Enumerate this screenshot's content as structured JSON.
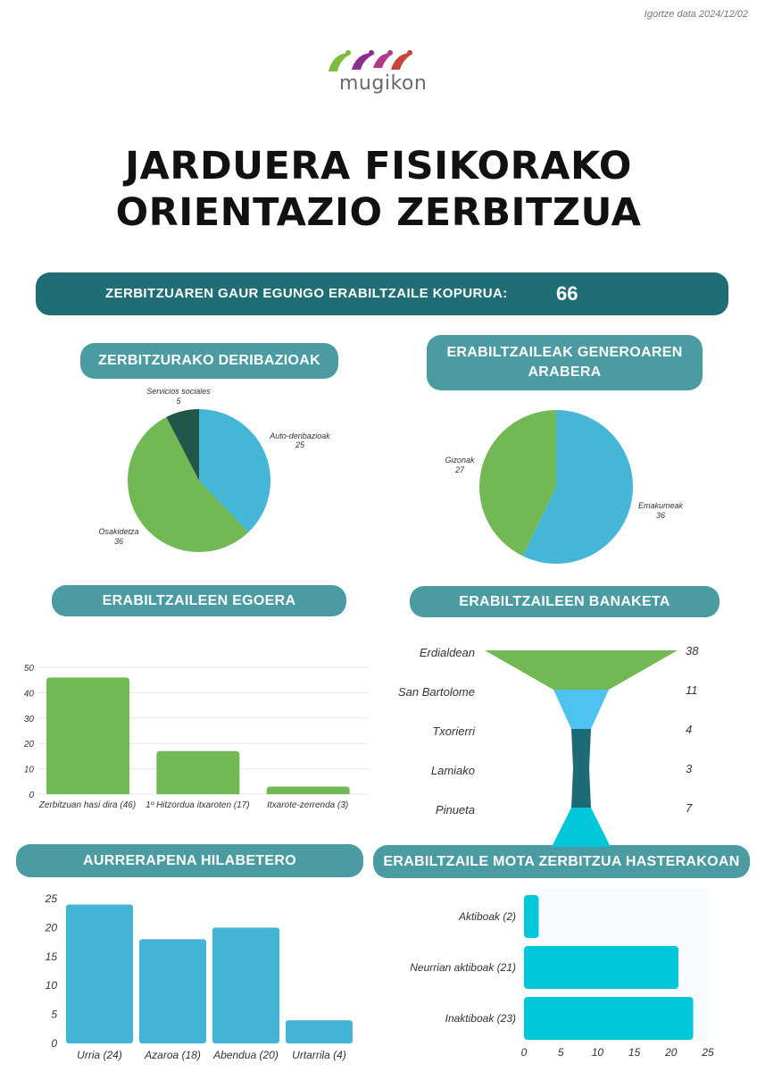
{
  "date": "Igortze data 2024/12/02",
  "logo": {
    "text": "mugikon"
  },
  "title": {
    "line1": "JARDUERA FISIKORAKO",
    "line2": "ORIENTAZIO ZERBITZUA"
  },
  "banner": {
    "label": "ZERBITZUAREN GAUR EGUNGO ERABILTZAILE KOPURUA:",
    "value": "66"
  },
  "sections": {
    "referrals": "ZERBITZURAKO DERIBAZIOAK",
    "gender": "ERABILTZAILEAK GENEROAREN ARABERA",
    "status": "ERABILTZAILEEN EGOERA",
    "distribution": "ERABILTZAILEEN BANAKETA",
    "monthly": "AURRERAPENA HILABETERO",
    "type": "ERABILTZAILE MOTA ZERBITZUA HASTERAKOAN"
  },
  "colors": {
    "blue": "#45b6d8",
    "green": "#72b955",
    "dark_green": "#22564a",
    "light_blue": "#4fc3f0",
    "teal": "#1d6b76",
    "cyan": "#00c6d9",
    "bar_blue": "#43b4d6",
    "dark_teal": "#1f6e75",
    "pill": "#4a9ba2"
  },
  "chart_data": [
    {
      "type": "pie",
      "labels": [
        "Auto-deribazioak",
        "Osakidetza",
        "Servicios sociales"
      ],
      "values": [
        25,
        36,
        5
      ]
    },
    {
      "type": "pie",
      "labels": [
        "Emakumeak",
        "Gizonak"
      ],
      "values": [
        36,
        27
      ]
    },
    {
      "type": "bar",
      "categories": [
        "Zerbitzuan hasi dira (46)",
        "1º Hitzordua itxaroten (17)",
        "Itxarote-zerrenda (3)"
      ],
      "values": [
        46,
        17,
        3
      ],
      "ylim": [
        0,
        50
      ],
      "yticks": [
        "0",
        "10",
        "20",
        "30",
        "40",
        "50"
      ],
      "grid": true
    },
    {
      "type": "funnel",
      "categories": [
        "Erdialdean",
        "San Bartolome",
        "Txorierri",
        "Lamiako",
        "Pinueta"
      ],
      "values": [
        38,
        11,
        4,
        3,
        7
      ]
    },
    {
      "type": "bar",
      "categories": [
        "Urria (24)",
        "Azaroa (18)",
        "Abendua (20)",
        "Urtarrila (4)"
      ],
      "values": [
        24,
        18,
        20,
        4
      ],
      "ylim": [
        0,
        25
      ],
      "yticks": [
        "0",
        "5",
        "10",
        "15",
        "20",
        "25"
      ]
    },
    {
      "type": "bar",
      "orientation": "horizontal",
      "categories": [
        "Aktiboak (2)",
        "Neurrian aktiboak (21)",
        "Inaktiboak (23)"
      ],
      "values": [
        2,
        21,
        23
      ],
      "xlim": [
        0,
        25
      ],
      "xticks": [
        "0",
        "5",
        "10",
        "15",
        "20",
        "25"
      ]
    }
  ]
}
